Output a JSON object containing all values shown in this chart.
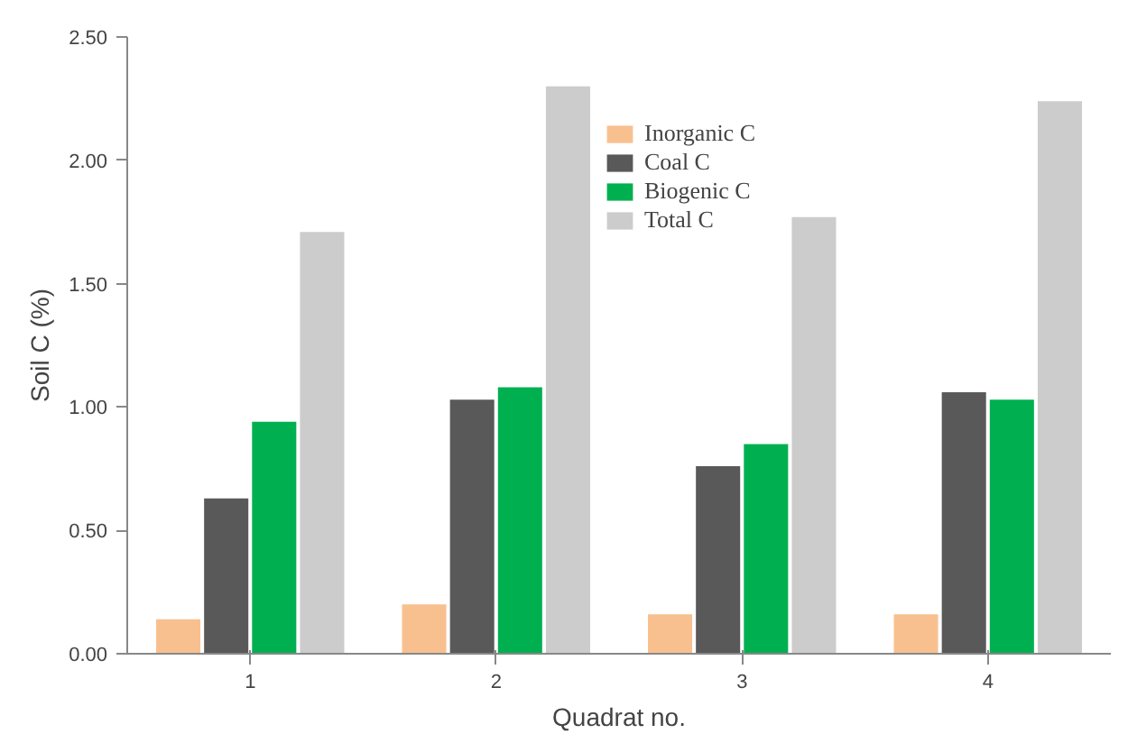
{
  "chart_data": {
    "type": "bar",
    "xlabel": "Quadrat no.",
    "ylabel": "Soil C (%)",
    "categories": [
      "1",
      "2",
      "3",
      "4"
    ],
    "series": [
      {
        "name": "Inorganic C",
        "color": "#f9c08f",
        "values": [
          0.14,
          0.2,
          0.16,
          0.16
        ]
      },
      {
        "name": "Coal C",
        "color": "#595959",
        "values": [
          0.63,
          1.03,
          0.76,
          1.06
        ]
      },
      {
        "name": "Biogenic C",
        "color": "#00b050",
        "values": [
          0.94,
          1.08,
          0.85,
          1.03
        ]
      },
      {
        "name": "Total C",
        "color": "#cccccc",
        "values": [
          1.71,
          2.3,
          1.77,
          2.24
        ]
      }
    ],
    "ylim": [
      0,
      2.5
    ],
    "yticks": [
      {
        "value": 0,
        "label": "0.00"
      },
      {
        "value": 0.5,
        "label": "0.50"
      },
      {
        "value": 1,
        "label": "1.00"
      },
      {
        "value": 1.5,
        "label": "1.50"
      },
      {
        "value": 2,
        "label": "2.00"
      },
      {
        "value": 2.5,
        "label": "2.50"
      }
    ],
    "grid": false,
    "legend": "top"
  }
}
